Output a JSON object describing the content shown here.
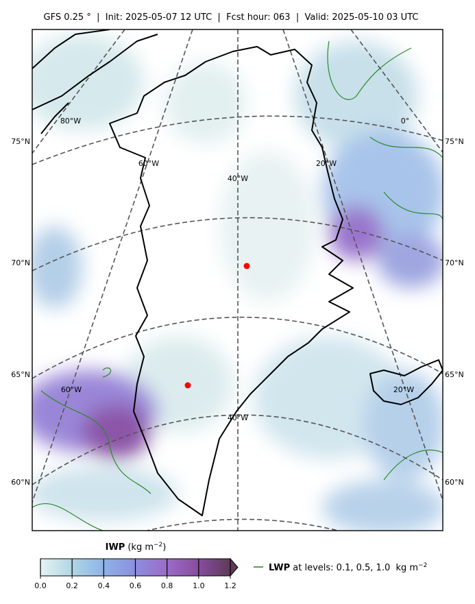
{
  "title": "GFS 0.25 °  |  Init: 2025-05-07 12 UTC  |  Fcst hour: 063  |  Valid: 2025-05-10 03 UTC",
  "map": {
    "lat_labels_left": [
      "75°N",
      "70°N",
      "65°N",
      "60°N"
    ],
    "lat_labels_right": [
      "75°N",
      "70°N",
      "65°N",
      "60°N"
    ],
    "lon_labels_top": [
      "80°W",
      "60°W",
      "40°W",
      "20°W",
      "0°"
    ],
    "lon_labels_bottom": [
      "60°W",
      "40°W",
      "20°W"
    ]
  },
  "colorbar": {
    "label": "IWP",
    "unit": "(kg m",
    "unit_exp": "−2",
    "lim": [
      0,
      1.2
    ],
    "ticks": [
      {
        "value": 0,
        "label": "0.0"
      },
      0.2,
      0.4,
      0.6,
      0.8,
      {
        "value": 1,
        "label": "1.0"
      },
      1.2
    ],
    "colors": [
      "#e6f2f2",
      "#b0d6e4",
      "#8eb3e6",
      "#8c8ee0",
      "#9a6cc8",
      "#874d9e",
      "#5e3a58"
    ]
  },
  "legend": {
    "label": "LWP",
    "text": " at levels: 0.1, 0.5, 1.0  kg m",
    "exp": "−2",
    "color": "#2a8a2a"
  }
}
